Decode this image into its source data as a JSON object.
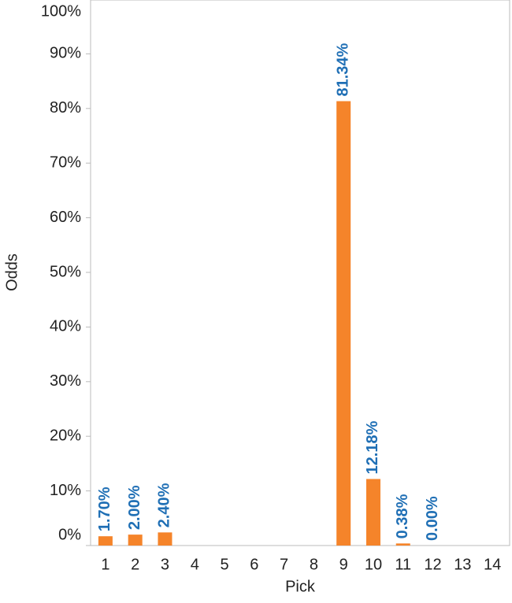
{
  "chart_data": {
    "type": "bar",
    "x_label": "Pick",
    "y_label": "Odds",
    "categories": [
      "1",
      "2",
      "3",
      "4",
      "5",
      "6",
      "7",
      "8",
      "9",
      "10",
      "11",
      "12",
      "13",
      "14"
    ],
    "values": [
      1.7,
      2.0,
      2.4,
      null,
      null,
      null,
      null,
      null,
      81.34,
      12.18,
      0.38,
      0.0,
      null,
      null
    ],
    "value_labels": [
      "1.70%",
      "2.00%",
      "2.40%",
      null,
      null,
      null,
      null,
      null,
      "81.34%",
      "12.18%",
      "0.38%",
      "0.00%",
      null,
      null
    ],
    "color": "#f5842a",
    "ylim": [
      0,
      100
    ],
    "yticks": [
      {
        "value": 0,
        "label": "0%"
      },
      {
        "value": 10,
        "label": "10%"
      },
      {
        "value": 20,
        "label": "20%"
      },
      {
        "value": 30,
        "label": "30%"
      },
      {
        "value": 40,
        "label": "40%"
      },
      {
        "value": 50,
        "label": "50%"
      },
      {
        "value": 60,
        "label": "60%"
      },
      {
        "value": 70,
        "label": "70%"
      },
      {
        "value": 80,
        "label": "80%"
      },
      {
        "value": 90,
        "label": "90%"
      },
      {
        "value": 100,
        "label": "100%"
      }
    ],
    "grid": false
  }
}
